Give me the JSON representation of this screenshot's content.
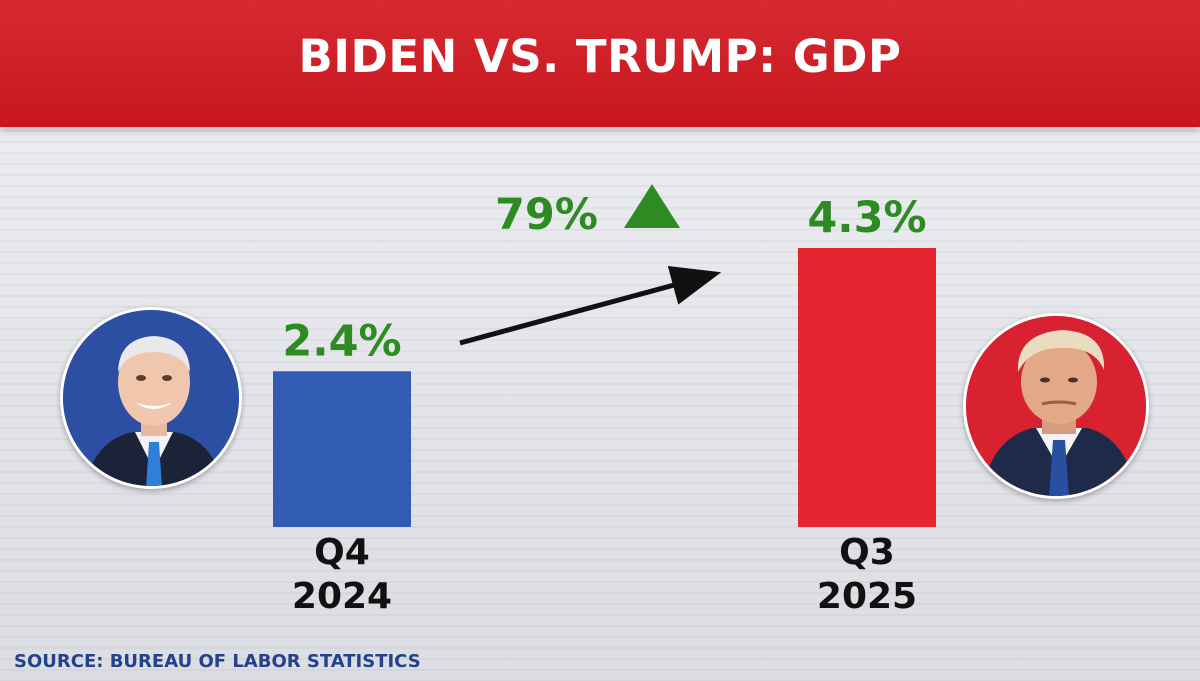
{
  "header": {
    "title": "BIDEN VS. TRUMP: GDP"
  },
  "chart_data": {
    "type": "bar",
    "title": "BIDEN VS. TRUMP: GDP",
    "categories": [
      {
        "line1": "Q4",
        "line2": "2024"
      },
      {
        "line1": "Q3",
        "line2": "2025"
      }
    ],
    "values": [
      2.4,
      4.3
    ],
    "value_labels": [
      "2.4%",
      "4.3%"
    ],
    "change_label": "79%",
    "ylim": [
      0,
      4.3
    ],
    "colors": [
      "#325cb4",
      "#e32530"
    ],
    "label_color": "#2e8a22"
  },
  "portraits": {
    "left": "biden-portrait",
    "right": "trump-portrait"
  },
  "source": "SOURCE: BUREAU OF LABOR STATISTICS"
}
